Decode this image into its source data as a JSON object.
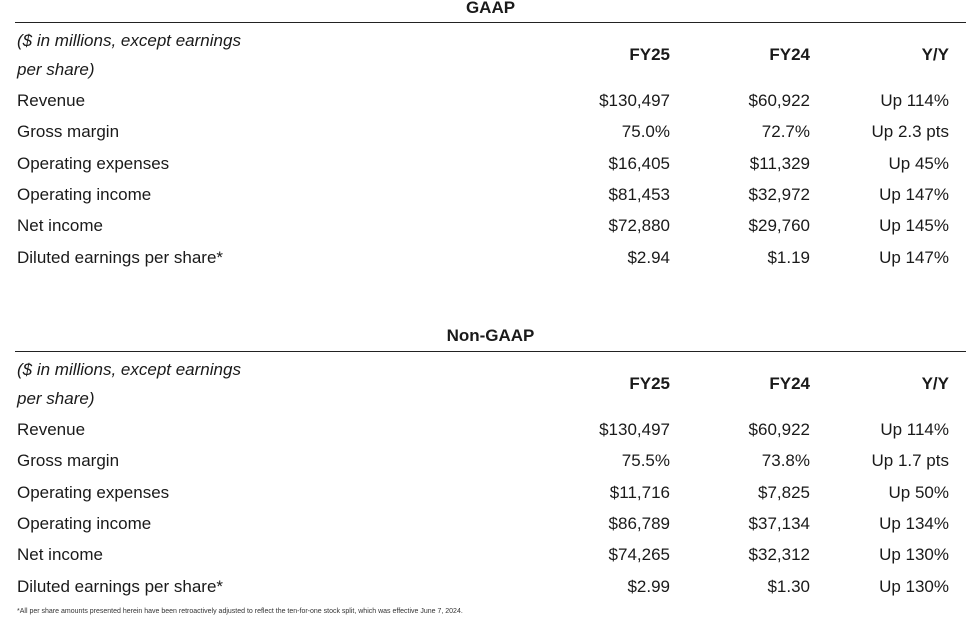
{
  "gaap": {
    "title": "GAAP",
    "header_line1": "($ in millions, except earnings",
    "header_line2": "per share)",
    "col1": "FY25",
    "col2": "FY24",
    "col3": "Y/Y",
    "rows": [
      {
        "label": "Revenue",
        "fy25": "$130,497",
        "fy24": "$60,922",
        "yy": "Up 114%"
      },
      {
        "label": "Gross margin",
        "fy25": "75.0%",
        "fy24": "72.7%",
        "yy": "Up 2.3 pts"
      },
      {
        "label": "Operating expenses",
        "fy25": "$16,405",
        "fy24": "$11,329",
        "yy": "Up 45%"
      },
      {
        "label": "Operating income",
        "fy25": "$81,453",
        "fy24": "$32,972",
        "yy": "Up 147%"
      },
      {
        "label": "Net income",
        "fy25": "$72,880",
        "fy24": "$29,760",
        "yy": "Up 145%"
      },
      {
        "label": "Diluted earnings per share*",
        "fy25": "$2.94",
        "fy24": "$1.19",
        "yy": "Up 147%"
      }
    ]
  },
  "nongaap": {
    "title": "Non-GAAP",
    "header_line1": "($ in millions, except earnings",
    "header_line2": "per share)",
    "col1": "FY25",
    "col2": "FY24",
    "col3": "Y/Y",
    "rows": [
      {
        "label": "Revenue",
        "fy25": "$130,497",
        "fy24": "$60,922",
        "yy": "Up 114%"
      },
      {
        "label": "Gross margin",
        "fy25": "75.5%",
        "fy24": "73.8%",
        "yy": "Up 1.7 pts"
      },
      {
        "label": "Operating expenses",
        "fy25": "$11,716",
        "fy24": "$7,825",
        "yy": "Up 50%"
      },
      {
        "label": "Operating income",
        "fy25": "$86,789",
        "fy24": "$37,134",
        "yy": "Up 134%"
      },
      {
        "label": "Net income",
        "fy25": "$74,265",
        "fy24": "$32,312",
        "yy": "Up 130%"
      },
      {
        "label": "Diluted earnings per share*",
        "fy25": "$2.99",
        "fy24": "$1.30",
        "yy": "Up 130%"
      }
    ]
  },
  "footnote": "*All per share amounts presented herein have been retroactively adjusted to reflect the ten-for-one stock split, which was effective June 7, 2024."
}
